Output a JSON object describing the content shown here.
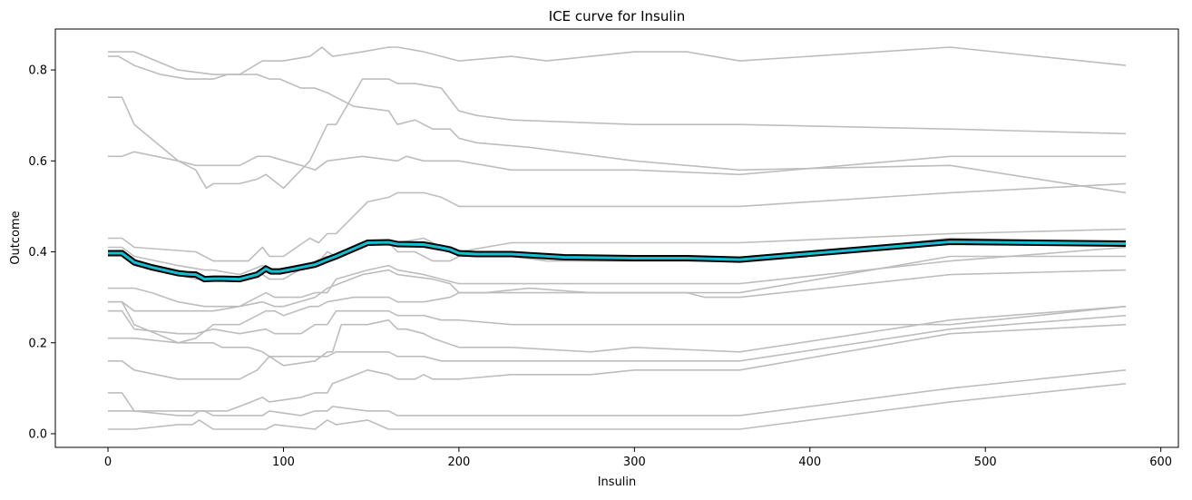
{
  "chart_data": {
    "type": "line",
    "title": "ICE curve for Insulin",
    "xlabel": "Insulin",
    "ylabel": "Outcome",
    "xlim": [
      -30,
      610
    ],
    "ylim": [
      -0.03,
      0.89
    ],
    "xticks": [
      0,
      100,
      200,
      300,
      400,
      500,
      600
    ],
    "yticks": [
      0.0,
      0.2,
      0.4,
      0.6,
      0.8
    ],
    "xtick_labels": [
      "0",
      "100",
      "200",
      "300",
      "400",
      "500",
      "600"
    ],
    "ytick_labels": [
      "0.0",
      "0.2",
      "0.4",
      "0.6",
      "0.8"
    ],
    "grid": false,
    "legend": "none",
    "colors": {
      "ice": "#bdbdbd",
      "mean_outline": "#000000",
      "mean_fill": "#17becf"
    },
    "series": [
      {
        "kind": "ice",
        "x": [
          0,
          15,
          40,
          60,
          75,
          88,
          100,
          115,
          122,
          125,
          128,
          145,
          160,
          165,
          180,
          190,
          200,
          230,
          250,
          275,
          300,
          330,
          360,
          480,
          580
        ],
        "y": [
          0.84,
          0.84,
          0.8,
          0.79,
          0.79,
          0.82,
          0.82,
          0.83,
          0.85,
          0.84,
          0.83,
          0.84,
          0.85,
          0.85,
          0.84,
          0.83,
          0.82,
          0.83,
          0.82,
          0.83,
          0.84,
          0.84,
          0.82,
          0.85,
          0.81
        ]
      },
      {
        "kind": "ice",
        "x": [
          0,
          6,
          15,
          30,
          45,
          60,
          68,
          85,
          92,
          98,
          110,
          118,
          125,
          140,
          160,
          165,
          175,
          185,
          195,
          200,
          210,
          240,
          300,
          360,
          480,
          580
        ],
        "y": [
          0.83,
          0.83,
          0.81,
          0.79,
          0.78,
          0.78,
          0.79,
          0.79,
          0.78,
          0.78,
          0.76,
          0.76,
          0.75,
          0.72,
          0.71,
          0.68,
          0.69,
          0.67,
          0.67,
          0.65,
          0.64,
          0.63,
          0.6,
          0.58,
          0.59,
          0.53
        ]
      },
      {
        "kind": "ice",
        "x": [
          0,
          8,
          15,
          40,
          50,
          56,
          60,
          75,
          85,
          90,
          100,
          115,
          125,
          130,
          145,
          160,
          165,
          175,
          190,
          200,
          210,
          230,
          300,
          360,
          480,
          580
        ],
        "y": [
          0.74,
          0.74,
          0.68,
          0.6,
          0.58,
          0.54,
          0.55,
          0.55,
          0.56,
          0.57,
          0.54,
          0.6,
          0.68,
          0.68,
          0.78,
          0.78,
          0.77,
          0.77,
          0.76,
          0.71,
          0.7,
          0.69,
          0.68,
          0.68,
          0.67,
          0.66
        ]
      },
      {
        "kind": "ice",
        "x": [
          0,
          8,
          15,
          40,
          50,
          75,
          85,
          92,
          110,
          118,
          125,
          145,
          165,
          170,
          180,
          200,
          215,
          230,
          300,
          360,
          480,
          580
        ],
        "y": [
          0.61,
          0.61,
          0.62,
          0.6,
          0.59,
          0.59,
          0.61,
          0.61,
          0.59,
          0.58,
          0.6,
          0.61,
          0.6,
          0.61,
          0.6,
          0.6,
          0.59,
          0.58,
          0.58,
          0.57,
          0.61,
          0.61
        ]
      },
      {
        "kind": "ice",
        "x": [
          0,
          8,
          15,
          50,
          60,
          80,
          88,
          92,
          100,
          115,
          120,
          125,
          130,
          148,
          160,
          165,
          180,
          190,
          200,
          230,
          300,
          360,
          480,
          580
        ],
        "y": [
          0.43,
          0.43,
          0.41,
          0.4,
          0.38,
          0.38,
          0.41,
          0.39,
          0.39,
          0.43,
          0.42,
          0.44,
          0.44,
          0.51,
          0.52,
          0.53,
          0.53,
          0.52,
          0.5,
          0.5,
          0.5,
          0.5,
          0.53,
          0.55
        ]
      },
      {
        "kind": "ice",
        "x": [
          0,
          8,
          15,
          40,
          55,
          60,
          75,
          88,
          95,
          110,
          118,
          125,
          130,
          148,
          165,
          180,
          190,
          200,
          230,
          300,
          360,
          480,
          580
        ],
        "y": [
          0.41,
          0.41,
          0.39,
          0.37,
          0.36,
          0.36,
          0.35,
          0.37,
          0.36,
          0.37,
          0.37,
          0.4,
          0.39,
          0.42,
          0.42,
          0.43,
          0.41,
          0.4,
          0.42,
          0.42,
          0.42,
          0.44,
          0.45
        ]
      },
      {
        "kind": "ice",
        "x": [
          0,
          8,
          15,
          40,
          50,
          60,
          75,
          88,
          92,
          100,
          118,
          125,
          130,
          148,
          160,
          165,
          175,
          185,
          195,
          200,
          210,
          230,
          250,
          300,
          330,
          360,
          480,
          580
        ],
        "y": [
          0.4,
          0.4,
          0.37,
          0.35,
          0.34,
          0.34,
          0.34,
          0.35,
          0.34,
          0.34,
          0.38,
          0.39,
          0.39,
          0.42,
          0.42,
          0.4,
          0.4,
          0.38,
          0.38,
          0.39,
          0.39,
          0.39,
          0.38,
          0.38,
          0.38,
          0.38,
          0.43,
          0.42
        ]
      },
      {
        "kind": "ice",
        "x": [
          0,
          15,
          25,
          40,
          55,
          60,
          75,
          90,
          95,
          110,
          118,
          125,
          130,
          148,
          160,
          165,
          180,
          200,
          230,
          260,
          300,
          360,
          480,
          580
        ],
        "y": [
          0.32,
          0.32,
          0.31,
          0.29,
          0.28,
          0.28,
          0.28,
          0.31,
          0.3,
          0.3,
          0.31,
          0.31,
          0.34,
          0.36,
          0.37,
          0.36,
          0.35,
          0.33,
          0.33,
          0.33,
          0.33,
          0.33,
          0.38,
          0.41
        ]
      },
      {
        "kind": "ice",
        "x": [
          0,
          8,
          15,
          50,
          60,
          75,
          88,
          95,
          100,
          118,
          125,
          145,
          160,
          165,
          185,
          195,
          200,
          215,
          240,
          275,
          330,
          340,
          360,
          480,
          580
        ],
        "y": [
          0.29,
          0.29,
          0.27,
          0.27,
          0.27,
          0.28,
          0.29,
          0.28,
          0.28,
          0.3,
          0.32,
          0.35,
          0.36,
          0.35,
          0.34,
          0.33,
          0.31,
          0.31,
          0.32,
          0.31,
          0.31,
          0.3,
          0.3,
          0.35,
          0.36
        ]
      },
      {
        "kind": "ice",
        "x": [
          0,
          8,
          15,
          40,
          50,
          60,
          75,
          90,
          95,
          100,
          115,
          120,
          125,
          140,
          160,
          165,
          180,
          195,
          200,
          220,
          300,
          360,
          480,
          580
        ],
        "y": [
          0.29,
          0.29,
          0.24,
          0.2,
          0.21,
          0.24,
          0.24,
          0.27,
          0.27,
          0.26,
          0.28,
          0.28,
          0.29,
          0.3,
          0.3,
          0.29,
          0.29,
          0.3,
          0.31,
          0.31,
          0.31,
          0.31,
          0.39,
          0.39
        ]
      },
      {
        "kind": "ice",
        "x": [
          0,
          8,
          15,
          40,
          50,
          60,
          75,
          90,
          95,
          110,
          118,
          125,
          130,
          148,
          160,
          165,
          180,
          190,
          200,
          230,
          300,
          360,
          480,
          580
        ],
        "y": [
          0.27,
          0.27,
          0.23,
          0.22,
          0.22,
          0.23,
          0.22,
          0.23,
          0.22,
          0.22,
          0.24,
          0.24,
          0.27,
          0.27,
          0.27,
          0.26,
          0.26,
          0.25,
          0.25,
          0.24,
          0.24,
          0.24,
          0.24,
          0.28
        ]
      },
      {
        "kind": "ice",
        "x": [
          0,
          15,
          40,
          60,
          65,
          80,
          88,
          92,
          100,
          118,
          125,
          130,
          148,
          160,
          165,
          180,
          190,
          200,
          220,
          300,
          360,
          480,
          580
        ],
        "y": [
          0.21,
          0.21,
          0.2,
          0.2,
          0.19,
          0.19,
          0.18,
          0.17,
          0.17,
          0.17,
          0.17,
          0.18,
          0.18,
          0.18,
          0.17,
          0.17,
          0.16,
          0.16,
          0.16,
          0.16,
          0.16,
          0.23,
          0.26
        ]
      },
      {
        "kind": "ice",
        "x": [
          0,
          8,
          15,
          40,
          60,
          75,
          85,
          92,
          100,
          118,
          125,
          128,
          133,
          148,
          160,
          165,
          170,
          180,
          185,
          200,
          230,
          275,
          300,
          360,
          480,
          580
        ],
        "y": [
          0.16,
          0.16,
          0.14,
          0.12,
          0.12,
          0.12,
          0.14,
          0.17,
          0.15,
          0.16,
          0.18,
          0.18,
          0.24,
          0.24,
          0.25,
          0.23,
          0.23,
          0.22,
          0.21,
          0.19,
          0.19,
          0.18,
          0.19,
          0.18,
          0.25,
          0.28
        ]
      },
      {
        "kind": "ice",
        "x": [
          0,
          8,
          15,
          40,
          48,
          52,
          60,
          68,
          75,
          88,
          92,
          110,
          118,
          125,
          128,
          148,
          160,
          165,
          175,
          180,
          185,
          200,
          230,
          275,
          300,
          360,
          480,
          580
        ],
        "y": [
          0.09,
          0.09,
          0.05,
          0.04,
          0.04,
          0.05,
          0.05,
          0.05,
          0.06,
          0.08,
          0.07,
          0.08,
          0.09,
          0.09,
          0.11,
          0.14,
          0.13,
          0.12,
          0.12,
          0.13,
          0.12,
          0.12,
          0.13,
          0.13,
          0.14,
          0.14,
          0.22,
          0.24
        ]
      },
      {
        "kind": "ice",
        "x": [
          0,
          15,
          40,
          48,
          55,
          60,
          75,
          88,
          92,
          110,
          118,
          125,
          128,
          148,
          160,
          165,
          180,
          200,
          300,
          360,
          480,
          580
        ],
        "y": [
          0.05,
          0.05,
          0.05,
          0.05,
          0.05,
          0.04,
          0.04,
          0.04,
          0.05,
          0.04,
          0.05,
          0.05,
          0.06,
          0.05,
          0.05,
          0.04,
          0.04,
          0.04,
          0.04,
          0.04,
          0.1,
          0.14
        ]
      },
      {
        "kind": "ice",
        "x": [
          0,
          15,
          40,
          48,
          52,
          60,
          75,
          90,
          95,
          118,
          125,
          130,
          148,
          160,
          165,
          200,
          300,
          360,
          480,
          580
        ],
        "y": [
          0.01,
          0.01,
          0.02,
          0.02,
          0.03,
          0.01,
          0.01,
          0.01,
          0.02,
          0.01,
          0.03,
          0.02,
          0.03,
          0.01,
          0.01,
          0.01,
          0.01,
          0.01,
          0.07,
          0.11
        ]
      },
      {
        "kind": "mean",
        "x": [
          0,
          8,
          15,
          25,
          40,
          45,
          50,
          55,
          60,
          65,
          75,
          85,
          90,
          93,
          98,
          105,
          118,
          125,
          130,
          148,
          160,
          165,
          180,
          190,
          195,
          200,
          210,
          230,
          260,
          300,
          330,
          360,
          480,
          580
        ],
        "y": [
          0.397,
          0.397,
          0.377,
          0.366,
          0.353,
          0.351,
          0.35,
          0.34,
          0.341,
          0.341,
          0.34,
          0.35,
          0.363,
          0.357,
          0.357,
          0.362,
          0.372,
          0.383,
          0.39,
          0.42,
          0.421,
          0.417,
          0.416,
          0.409,
          0.405,
          0.397,
          0.395,
          0.395,
          0.388,
          0.386,
          0.386,
          0.383,
          0.422,
          0.418
        ]
      }
    ]
  }
}
